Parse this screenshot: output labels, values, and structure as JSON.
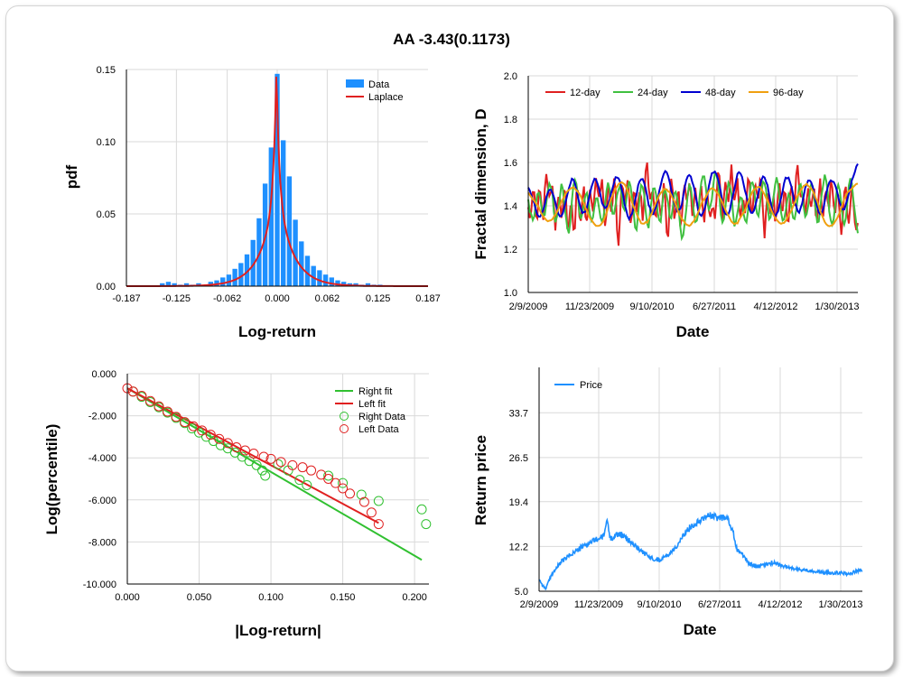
{
  "page_title": "AA  -3.43(0.1173)",
  "colors": {
    "hist": "#1e90ff",
    "laplace": "#e02020",
    "d12": "#e02020",
    "d24": "#40c040",
    "d48": "#0000d0",
    "d96": "#f0a010",
    "right_fit": "#30c030",
    "left_fit": "#e02020",
    "price": "#1e90ff",
    "grid": "#d9d9d9"
  },
  "chart_data": [
    {
      "id": "pdf",
      "type": "bar",
      "xlabel": "Log-return",
      "ylabel": "pdf",
      "xlim": [
        -0.187,
        0.187
      ],
      "ylim": [
        0,
        0.15
      ],
      "xticks": [
        -0.187,
        -0.125,
        -0.062,
        0.0,
        0.062,
        0.125,
        0.187
      ],
      "xtick_labels": [
        "-0.187",
        "-0.125",
        "-0.062",
        "0.000",
        "0.062",
        "0.125",
        "0.187"
      ],
      "yticks": [
        0,
        0.05,
        0.1,
        0.15
      ],
      "ytick_labels": [
        "0.00",
        "0.05",
        "0.10",
        "0.15"
      ],
      "bin_width": 0.0075,
      "bins": [
        [
          -0.1425,
          0.002
        ],
        [
          -0.135,
          0.003
        ],
        [
          -0.1275,
          0.002
        ],
        [
          -0.12,
          0.001
        ],
        [
          -0.1125,
          0.002
        ],
        [
          -0.105,
          0.001
        ],
        [
          -0.0975,
          0.002
        ],
        [
          -0.09,
          0.001
        ],
        [
          -0.0825,
          0.003
        ],
        [
          -0.075,
          0.004
        ],
        [
          -0.0675,
          0.006
        ],
        [
          -0.06,
          0.008
        ],
        [
          -0.0525,
          0.012
        ],
        [
          -0.045,
          0.016
        ],
        [
          -0.0375,
          0.022
        ],
        [
          -0.03,
          0.032
        ],
        [
          -0.0225,
          0.047
        ],
        [
          -0.015,
          0.071
        ],
        [
          -0.0075,
          0.096
        ],
        [
          0.0,
          0.147
        ],
        [
          0.0075,
          0.101
        ],
        [
          0.015,
          0.076
        ],
        [
          0.0225,
          0.046
        ],
        [
          0.03,
          0.031
        ],
        [
          0.0375,
          0.021
        ],
        [
          0.045,
          0.014
        ],
        [
          0.0525,
          0.011
        ],
        [
          0.06,
          0.008
        ],
        [
          0.0675,
          0.006
        ],
        [
          0.075,
          0.004
        ],
        [
          0.0825,
          0.003
        ],
        [
          0.09,
          0.002
        ],
        [
          0.0975,
          0.002
        ],
        [
          0.105,
          0.001
        ],
        [
          0.1125,
          0.002
        ],
        [
          0.12,
          0.001
        ],
        [
          0.1275,
          0.001
        ]
      ],
      "laplace": {
        "mu": -0.001,
        "b": 0.0033,
        "peak": 0.152,
        "scale": 0.0188
      },
      "legend": [
        "Data",
        "Laplace"
      ]
    },
    {
      "id": "fractal",
      "type": "line",
      "xlabel": "Date",
      "ylabel": "Fractal dimension, D",
      "ylim": [
        1.0,
        2.0
      ],
      "yticks": [
        1.0,
        1.2,
        1.4,
        1.6,
        1.8,
        2.0
      ],
      "ytick_labels": [
        "1.0",
        "1.2",
        "1.4",
        "1.6",
        "1.8",
        "2.0"
      ],
      "xtick_labels": [
        "2/9/2009",
        "11/23/2009",
        "9/10/2010",
        "6/27/2011",
        "4/12/2012",
        "1/30/2013"
      ],
      "n_points": 220,
      "series": [
        {
          "name": "12-day",
          "color_key": "d12"
        },
        {
          "name": "24-day",
          "color_key": "d24"
        },
        {
          "name": "48-day",
          "color_key": "d48"
        },
        {
          "name": "96-day",
          "color_key": "d96"
        }
      ]
    },
    {
      "id": "tails",
      "type": "scatter",
      "xlabel": "|Log-return|",
      "ylabel": "Log(percentile)",
      "xlim": [
        0,
        0.21
      ],
      "ylim": [
        -10,
        0
      ],
      "xticks": [
        0,
        0.05,
        0.1,
        0.15,
        0.2
      ],
      "xtick_labels": [
        "0.000",
        "0.050",
        "0.100",
        "0.150",
        "0.200"
      ],
      "yticks": [
        0,
        -2,
        -4,
        -6,
        -8,
        -10
      ],
      "ytick_labels": [
        "0.000",
        "-2.000",
        "-4.000",
        "-6.000",
        "-8.000",
        "-10.000"
      ],
      "right_fit": [
        [
          0.0,
          -0.69
        ],
        [
          0.205,
          -8.85
        ]
      ],
      "left_fit": [
        [
          0.0,
          -0.69
        ],
        [
          0.175,
          -7.1
        ]
      ],
      "right_data": [
        [
          0.004,
          -0.85
        ],
        [
          0.01,
          -1.1
        ],
        [
          0.016,
          -1.35
        ],
        [
          0.022,
          -1.6
        ],
        [
          0.028,
          -1.85
        ],
        [
          0.034,
          -2.1
        ],
        [
          0.04,
          -2.35
        ],
        [
          0.045,
          -2.6
        ],
        [
          0.05,
          -2.8
        ],
        [
          0.055,
          -3.0
        ],
        [
          0.06,
          -3.2
        ],
        [
          0.065,
          -3.4
        ],
        [
          0.07,
          -3.55
        ],
        [
          0.075,
          -3.75
        ],
        [
          0.08,
          -3.95
        ],
        [
          0.085,
          -4.15
        ],
        [
          0.09,
          -4.35
        ],
        [
          0.094,
          -4.6
        ],
        [
          0.096,
          -4.85
        ],
        [
          0.105,
          -4.3
        ],
        [
          0.112,
          -4.6
        ],
        [
          0.12,
          -5.05
        ],
        [
          0.125,
          -5.3
        ],
        [
          0.14,
          -4.85
        ],
        [
          0.15,
          -5.2
        ],
        [
          0.163,
          -5.75
        ],
        [
          0.175,
          -6.05
        ],
        [
          0.205,
          -6.45
        ],
        [
          0.208,
          -7.15
        ]
      ],
      "left_data": [
        [
          0.0,
          -0.69
        ],
        [
          0.004,
          -0.85
        ],
        [
          0.01,
          -1.05
        ],
        [
          0.016,
          -1.3
        ],
        [
          0.022,
          -1.55
        ],
        [
          0.028,
          -1.8
        ],
        [
          0.034,
          -2.05
        ],
        [
          0.04,
          -2.3
        ],
        [
          0.046,
          -2.5
        ],
        [
          0.052,
          -2.7
        ],
        [
          0.058,
          -2.9
        ],
        [
          0.064,
          -3.1
        ],
        [
          0.07,
          -3.3
        ],
        [
          0.076,
          -3.5
        ],
        [
          0.082,
          -3.65
        ],
        [
          0.088,
          -3.8
        ],
        [
          0.095,
          -3.95
        ],
        [
          0.1,
          -4.05
        ],
        [
          0.107,
          -4.2
        ],
        [
          0.115,
          -4.35
        ],
        [
          0.122,
          -4.45
        ],
        [
          0.128,
          -4.6
        ],
        [
          0.135,
          -4.8
        ],
        [
          0.14,
          -5.0
        ],
        [
          0.145,
          -5.2
        ],
        [
          0.15,
          -5.45
        ],
        [
          0.155,
          -5.7
        ],
        [
          0.165,
          -6.1
        ],
        [
          0.17,
          -6.6
        ],
        [
          0.175,
          -7.15
        ]
      ],
      "legend": [
        "Right fit",
        "Left fit",
        "Right Data",
        "Left Data"
      ]
    },
    {
      "id": "price",
      "type": "line",
      "xlabel": "Date",
      "ylabel": "Return price",
      "ylim": [
        5.0,
        41.0
      ],
      "yticks": [
        5.0,
        12.2,
        19.4,
        26.5,
        33.7
      ],
      "ytick_labels": [
        "5.0",
        "12.2",
        "19.4",
        "26.5",
        "33.7"
      ],
      "xtick_labels": [
        "2/9/2009",
        "11/23/2009",
        "9/10/2010",
        "6/27/2011",
        "4/12/2012",
        "1/30/2013"
      ],
      "anchors": [
        [
          0.0,
          7.0
        ],
        [
          0.01,
          6.0
        ],
        [
          0.02,
          5.4
        ],
        [
          0.04,
          7.8
        ],
        [
          0.07,
          9.8
        ],
        [
          0.1,
          11.0
        ],
        [
          0.14,
          12.3
        ],
        [
          0.17,
          13.2
        ],
        [
          0.2,
          13.8
        ],
        [
          0.21,
          16.6
        ],
        [
          0.22,
          13.5
        ],
        [
          0.25,
          14.3
        ],
        [
          0.3,
          12.2
        ],
        [
          0.34,
          10.5
        ],
        [
          0.37,
          10.0
        ],
        [
          0.4,
          10.9
        ],
        [
          0.43,
          12.5
        ],
        [
          0.46,
          15.0
        ],
        [
          0.49,
          16.2
        ],
        [
          0.52,
          17.3
        ],
        [
          0.55,
          16.8
        ],
        [
          0.58,
          17.0
        ],
        [
          0.6,
          14.5
        ],
        [
          0.61,
          12.0
        ],
        [
          0.63,
          10.8
        ],
        [
          0.65,
          9.4
        ],
        [
          0.68,
          9.0
        ],
        [
          0.72,
          9.6
        ],
        [
          0.76,
          9.0
        ],
        [
          0.8,
          8.5
        ],
        [
          0.84,
          8.3
        ],
        [
          0.88,
          8.0
        ],
        [
          0.92,
          8.0
        ],
        [
          0.96,
          7.8
        ],
        [
          1.0,
          8.5
        ]
      ],
      "legend": [
        "Price"
      ]
    }
  ]
}
